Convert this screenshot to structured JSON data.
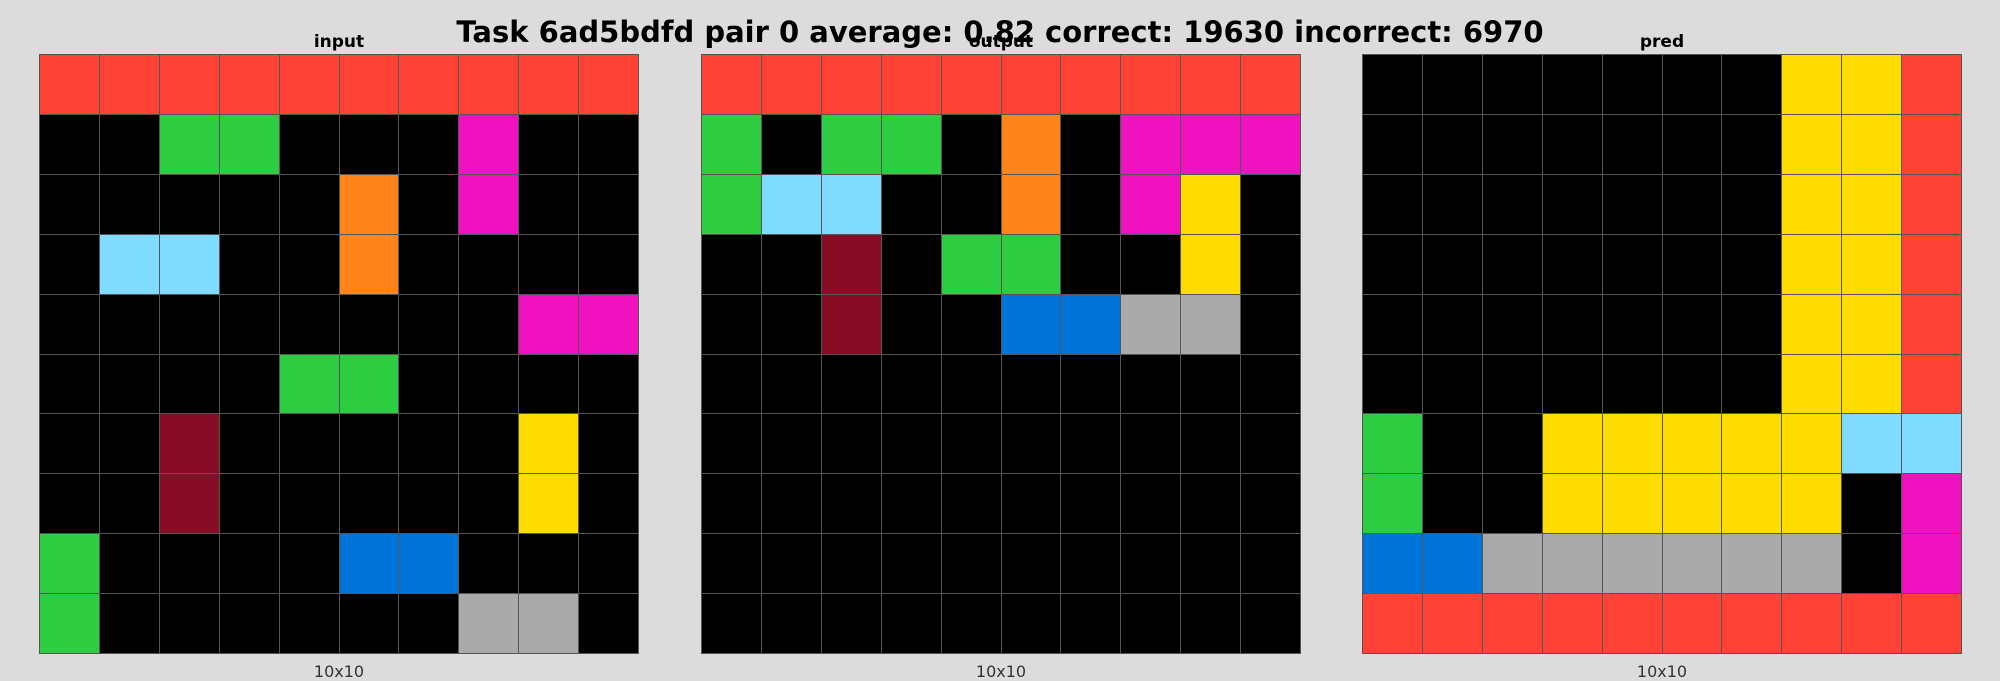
{
  "header": {
    "title": "Task 6ad5bdfd pair 0 average: 0.82 correct: 19630 incorrect: 6970"
  },
  "palette": {
    "0": "#000000",
    "1": "#0074d9",
    "2": "#ff4136",
    "3": "#2ecc40",
    "4": "#ffdc00",
    "5": "#aaaaaa",
    "6": "#f012be",
    "7": "#ff851b",
    "8": "#7fdbff",
    "9": "#870c25"
  },
  "panels": [
    {
      "label": "input",
      "size": "10x10",
      "grid": [
        [
          2,
          2,
          2,
          2,
          2,
          2,
          2,
          2,
          2,
          2
        ],
        [
          0,
          0,
          3,
          3,
          0,
          0,
          0,
          6,
          0,
          0
        ],
        [
          0,
          0,
          0,
          0,
          0,
          7,
          0,
          6,
          0,
          0
        ],
        [
          0,
          8,
          8,
          0,
          0,
          7,
          0,
          0,
          0,
          0
        ],
        [
          0,
          0,
          0,
          0,
          0,
          0,
          0,
          0,
          6,
          6
        ],
        [
          0,
          0,
          0,
          0,
          3,
          3,
          0,
          0,
          0,
          0
        ],
        [
          0,
          0,
          9,
          0,
          0,
          0,
          0,
          0,
          4,
          0
        ],
        [
          0,
          0,
          9,
          0,
          0,
          0,
          0,
          0,
          4,
          0
        ],
        [
          3,
          0,
          0,
          0,
          0,
          1,
          1,
          0,
          0,
          0
        ],
        [
          3,
          0,
          0,
          0,
          0,
          0,
          0,
          5,
          5,
          0
        ]
      ]
    },
    {
      "label": "output",
      "size": "10x10",
      "grid": [
        [
          2,
          2,
          2,
          2,
          2,
          2,
          2,
          2,
          2,
          2
        ],
        [
          3,
          0,
          3,
          3,
          0,
          7,
          0,
          6,
          6,
          6
        ],
        [
          3,
          8,
          8,
          0,
          0,
          7,
          0,
          6,
          4,
          0
        ],
        [
          0,
          0,
          9,
          0,
          3,
          3,
          0,
          0,
          4,
          0
        ],
        [
          0,
          0,
          9,
          0,
          0,
          1,
          1,
          5,
          5,
          0
        ],
        [
          0,
          0,
          0,
          0,
          0,
          0,
          0,
          0,
          0,
          0
        ],
        [
          0,
          0,
          0,
          0,
          0,
          0,
          0,
          0,
          0,
          0
        ],
        [
          0,
          0,
          0,
          0,
          0,
          0,
          0,
          0,
          0,
          0
        ],
        [
          0,
          0,
          0,
          0,
          0,
          0,
          0,
          0,
          0,
          0
        ],
        [
          0,
          0,
          0,
          0,
          0,
          0,
          0,
          0,
          0,
          0
        ]
      ]
    },
    {
      "label": "pred",
      "size": "10x10",
      "grid": [
        [
          0,
          0,
          0,
          0,
          0,
          0,
          0,
          4,
          4,
          2
        ],
        [
          0,
          0,
          0,
          0,
          0,
          0,
          0,
          4,
          4,
          2
        ],
        [
          0,
          0,
          0,
          0,
          0,
          0,
          0,
          4,
          4,
          2
        ],
        [
          0,
          0,
          0,
          0,
          0,
          0,
          0,
          4,
          4,
          2
        ],
        [
          0,
          0,
          0,
          0,
          0,
          0,
          0,
          4,
          4,
          2
        ],
        [
          0,
          0,
          0,
          0,
          0,
          0,
          0,
          4,
          4,
          2
        ],
        [
          3,
          0,
          0,
          4,
          4,
          4,
          4,
          4,
          8,
          8
        ],
        [
          3,
          0,
          0,
          4,
          4,
          4,
          4,
          4,
          0,
          6
        ],
        [
          1,
          1,
          5,
          5,
          5,
          5,
          5,
          5,
          0,
          6
        ],
        [
          2,
          2,
          2,
          2,
          2,
          2,
          2,
          2,
          2,
          2
        ]
      ]
    }
  ]
}
